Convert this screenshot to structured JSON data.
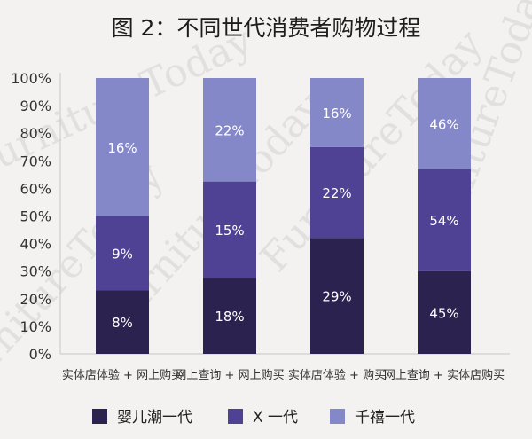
{
  "title": "图 2：不同世代消费者购物过程",
  "watermark": "FurnitureToday",
  "colors": {
    "baby_boomer": "#2b2250",
    "gen_x": "#4f4194",
    "millennial": "#8488c8"
  },
  "chart_data": {
    "type": "bar",
    "stacked": true,
    "title": "图 2：不同世代消费者购物过程",
    "xlabel": "",
    "ylabel": "",
    "ylim": [
      0,
      100
    ],
    "y_ticks": [
      "0%",
      "10%",
      "20%",
      "30%",
      "40%",
      "50%",
      "60%",
      "70%",
      "80%",
      "90%",
      "100%"
    ],
    "categories": [
      "实体店体验 + 网上购买",
      "网上查询 + 网上购买",
      "实体店体验 + 购买",
      "网上查询 + 实体店购买"
    ],
    "legend_position": "bottom",
    "grid": false,
    "series": [
      {
        "name": "婴儿潮一代",
        "color": "#2b2250",
        "heights": [
          23,
          27.5,
          42,
          30
        ],
        "labels": [
          "8%",
          "18%",
          "29%",
          "45%"
        ]
      },
      {
        "name": "X 一代",
        "color": "#4f4194",
        "heights": [
          27,
          35,
          33,
          37
        ],
        "labels": [
          "9%",
          "15%",
          "22%",
          "54%"
        ]
      },
      {
        "name": "千禧一代",
        "color": "#8488c8",
        "heights": [
          50,
          37.5,
          25,
          33
        ],
        "labels": [
          "16%",
          "22%",
          "16%",
          "46%"
        ]
      }
    ]
  }
}
